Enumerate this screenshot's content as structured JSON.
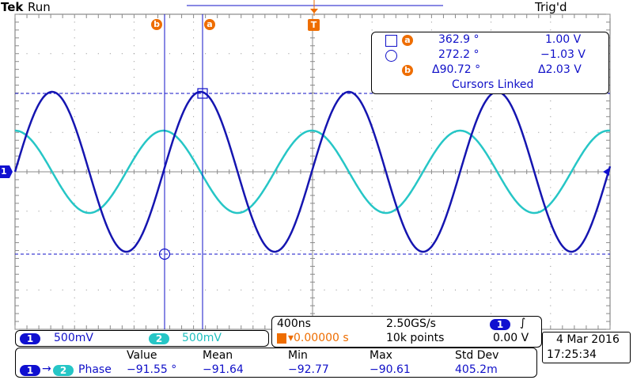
{
  "header": {
    "brand": "Tek",
    "run_state": "Run",
    "trigger_state": "Trig'd"
  },
  "markers": {
    "cursor_a": "a",
    "cursor_b": "b",
    "trigger": "T",
    "ch1_ground": "1"
  },
  "cursor_readout": {
    "row_a": {
      "time": "362.9 °",
      "volt": "1.00 V"
    },
    "row_b": {
      "time": "272.2 °",
      "volt": "−1.03 V"
    },
    "delta": {
      "time": "Δ90.72 °",
      "volt": "Δ2.03 V"
    },
    "linked_text": "Cursors Linked"
  },
  "channels": {
    "ch1": {
      "label": "1",
      "scale": "500mV"
    },
    "ch2": {
      "label": "2",
      "scale": "500mV"
    }
  },
  "timebase": {
    "scale": "400ns",
    "sample_rate": "2.50GS/s",
    "trigger_position": "▾0.00000 s",
    "record_length": "10k points",
    "trigger_source": "1",
    "trigger_slope": "∫",
    "trigger_level": "0.00 V"
  },
  "measurement": {
    "headers": [
      "Value",
      "Mean",
      "Min",
      "Max",
      "Std Dev"
    ],
    "source_a": "1",
    "arrow": "→",
    "source_b": "2",
    "name": "Phase",
    "values": [
      "−91.55 °",
      "−91.64",
      "−92.77",
      "−90.61",
      "405.2m"
    ]
  },
  "datetime": {
    "date": "4 Mar  2016",
    "time": "17:25:34"
  },
  "colors": {
    "ch1": "#1010c8",
    "ch2": "#26c6c6",
    "accent": "#ee6d00"
  }
}
